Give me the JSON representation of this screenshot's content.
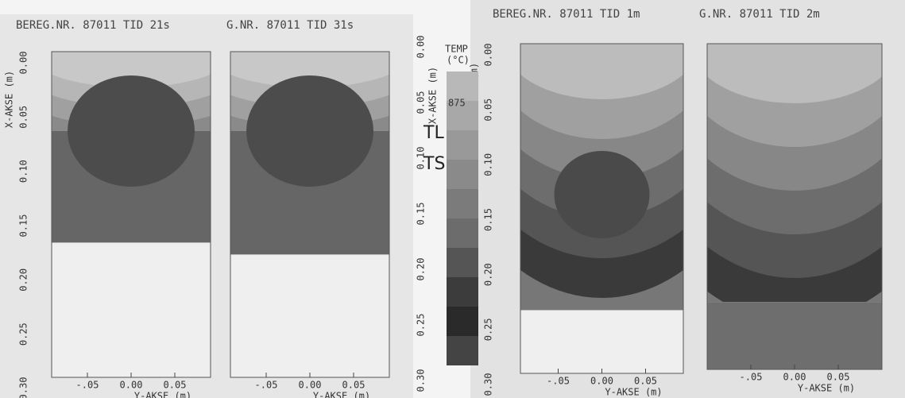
{
  "panels": [
    {
      "header": "BEREG.NR. 87011 TID 21s",
      "y_axis_label": "X-AKSE (m)",
      "x_axis_label": "Y-AKSE (m)",
      "x_ticks": [
        "-.05",
        "0.00",
        "0.05"
      ]
    },
    {
      "header": "G.NR. 87011 TID 31s",
      "y_axis_label": "X-AKSE (m)",
      "x_axis_label": "Y-AKSE (m)",
      "x_ticks": [
        "-.05",
        "0.00",
        "0.05"
      ]
    },
    {
      "header": "BEREG.NR. 87011 TID 1m",
      "y_axis_label": "X-AKSE (m)",
      "x_axis_label": "Y-AKSE (m)",
      "x_ticks": [
        "-.05",
        "0.00",
        "0.05"
      ]
    },
    {
      "header": "G.NR. 87011 TID 2m",
      "y_axis_label": "X-AKSE (m)",
      "x_axis_label": "Y-AKSE (m)",
      "x_ticks": [
        "-.05",
        "0.00",
        "0.05"
      ]
    }
  ],
  "y_ticks": [
    "0.00",
    "0.05",
    "0.10",
    "0.15",
    "0.20",
    "0.25",
    "0.30"
  ],
  "legend": {
    "title": "TEMP",
    "unit": "(°C)",
    "entry": "875",
    "liquidus": "TL",
    "solidus": "TS"
  }
}
